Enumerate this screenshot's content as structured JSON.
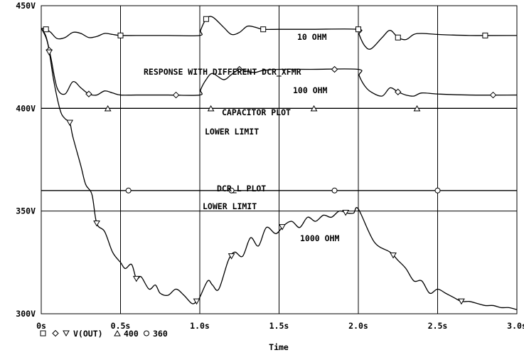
{
  "chart_data": {
    "type": "line",
    "title": "RESPONSE WITH DIFFERENT DCR_XFMR",
    "xlabel": "Time",
    "ylabel": "",
    "xlim": [
      0,
      3.0
    ],
    "ylim": [
      300,
      450
    ],
    "x_ticks": [
      {
        "v": 0,
        "label": "0s"
      },
      {
        "v": 0.5,
        "label": "0.5s"
      },
      {
        "v": 1.0,
        "label": "1.0s"
      },
      {
        "v": 1.5,
        "label": "1.5s"
      },
      {
        "v": 2.0,
        "label": "2.0s"
      },
      {
        "v": 2.5,
        "label": "2.5s"
      },
      {
        "v": 3.0,
        "label": "3.0s"
      }
    ],
    "y_ticks": [
      {
        "v": 300,
        "label": "300V"
      },
      {
        "v": 350,
        "label": "350V"
      },
      {
        "v": 400,
        "label": "400V"
      },
      {
        "v": 450,
        "label": "450V"
      }
    ],
    "grid": true,
    "legend_position": "bottom-left",
    "legend": {
      "series_label": "V(OUT)",
      "ref1_label": "400",
      "ref2_label": "360"
    },
    "annotations": {
      "title": "RESPONSE WITH DIFFERENT DCR_XFMR",
      "r10": "10 OHM",
      "r100": "100 OHM",
      "r1000": "1000 OHM",
      "cap_plot": "CAPACITOR PLOT",
      "lower_limit_1": "LOWER LIMIT",
      "dcrl_plot": "DCR_L PLOT",
      "lower_limit_2": "LOWER LIMIT"
    },
    "series": [
      {
        "name": "10 OHM",
        "marker": "square",
        "x": [
          0,
          0.03,
          0.06,
          0.1,
          0.15,
          0.2,
          0.25,
          0.3,
          0.35,
          0.4,
          0.45,
          0.5,
          0.6,
          0.8,
          1.0,
          1.005,
          1.04,
          1.08,
          1.15,
          1.2,
          1.25,
          1.3,
          1.35,
          1.4,
          1.5,
          1.7,
          2.0,
          2.005,
          2.04,
          2.08,
          2.15,
          2.2,
          2.25,
          2.3,
          2.35,
          2.4,
          2.5,
          2.7,
          3.0
        ],
        "y": [
          439,
          438.5,
          437,
          434,
          434.5,
          437,
          436.5,
          434.5,
          435,
          436.5,
          436,
          435.5,
          435.5,
          435.5,
          435.5,
          438,
          443.5,
          444.5,
          439.5,
          436,
          437,
          440,
          439.5,
          438.5,
          438.5,
          438.5,
          438.5,
          436,
          430.5,
          429,
          434.5,
          438,
          434.5,
          433.5,
          436,
          436.5,
          436,
          435.5,
          435.5
        ],
        "marker_x": [
          0.03,
          0.5,
          1.04,
          1.4,
          2.0,
          2.25,
          2.8
        ]
      },
      {
        "name": "100 OHM",
        "marker": "diamond",
        "x": [
          0,
          0.03,
          0.06,
          0.1,
          0.15,
          0.2,
          0.25,
          0.3,
          0.35,
          0.4,
          0.45,
          0.5,
          0.6,
          0.8,
          1.0,
          1.005,
          1.04,
          1.08,
          1.15,
          1.2,
          1.25,
          1.3,
          1.35,
          1.4,
          1.5,
          1.7,
          2.0,
          2.005,
          2.04,
          2.08,
          2.15,
          2.2,
          2.25,
          2.3,
          2.35,
          2.4,
          2.5,
          2.7,
          3.0
        ],
        "y": [
          439,
          435,
          425,
          410,
          407,
          413,
          410,
          407,
          406.5,
          408.5,
          407.5,
          406.5,
          406.5,
          406.5,
          406.5,
          409,
          414,
          417,
          414,
          416.5,
          419,
          418,
          417.5,
          418.5,
          419,
          419,
          419,
          416,
          411,
          408,
          406,
          410,
          408,
          406.5,
          406,
          407.5,
          407,
          406.5,
          406.5
        ],
        "marker_x": [
          0.05,
          0.3,
          0.85,
          1.25,
          1.85,
          2.25,
          2.85
        ]
      },
      {
        "name": "1000 OHM",
        "marker": "triangle-down",
        "x": [
          0,
          0.04,
          0.08,
          0.12,
          0.15,
          0.18,
          0.2,
          0.25,
          0.28,
          0.32,
          0.35,
          0.4,
          0.45,
          0.5,
          0.53,
          0.57,
          0.6,
          0.63,
          0.68,
          0.72,
          0.75,
          0.8,
          0.85,
          0.9,
          0.95,
          0.98,
          1.0,
          1.05,
          1.08,
          1.12,
          1.18,
          1.22,
          1.27,
          1.32,
          1.37,
          1.42,
          1.48,
          1.53,
          1.58,
          1.63,
          1.68,
          1.73,
          1.78,
          1.83,
          1.88,
          1.93,
          1.97,
          2.0,
          2.1,
          2.2,
          2.25,
          2.3,
          2.35,
          2.4,
          2.45,
          2.5,
          2.55,
          2.6,
          2.65,
          2.7,
          2.75,
          2.8,
          2.85,
          2.9,
          2.95,
          3.0
        ],
        "y": [
          439,
          432,
          413,
          399,
          395,
          393,
          386,
          372,
          363,
          358,
          344,
          340,
          330,
          325,
          322,
          324,
          317,
          318,
          312,
          314,
          310,
          309,
          312,
          309,
          305,
          306,
          308,
          316,
          314,
          312,
          326,
          330,
          328,
          337,
          333,
          342,
          339,
          343,
          345,
          342,
          347,
          345,
          348,
          347,
          350,
          349,
          349,
          351,
          335,
          330,
          326,
          322,
          316,
          316,
          310,
          312,
          310,
          308,
          306,
          306,
          305,
          304,
          304,
          303,
          303,
          302
        ],
        "marker_x": [
          0.05,
          0.18,
          0.35,
          0.6,
          0.98,
          1.2,
          1.52,
          1.92,
          2.22,
          2.65
        ]
      },
      {
        "name": "400",
        "marker": "triangle-up",
        "x": [
          0,
          3.0
        ],
        "y": [
          400,
          400
        ],
        "marker_x": [
          0.42,
          1.07,
          1.72,
          2.37
        ]
      },
      {
        "name": "360",
        "marker": "circle",
        "x": [
          0,
          3.0
        ],
        "y": [
          360,
          360
        ],
        "marker_x": [
          0.55,
          1.2,
          1.85,
          2.5
        ]
      }
    ]
  }
}
